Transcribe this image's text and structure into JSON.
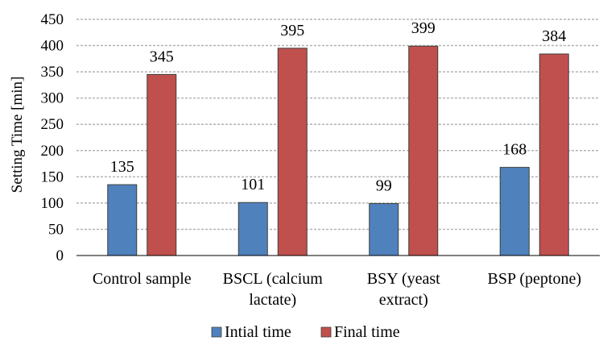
{
  "chart_data": {
    "type": "bar",
    "categories": [
      [
        "Control sample"
      ],
      [
        "BSCL (calcium",
        "lactate)"
      ],
      [
        "BSY (yeast",
        "extract)"
      ],
      [
        "BSP (peptone)"
      ]
    ],
    "series": [
      {
        "name": "Intial time",
        "values": [
          135,
          101,
          99,
          168
        ],
        "color": "#4F81BD"
      },
      {
        "name": "Final time",
        "values": [
          345,
          395,
          399,
          384
        ],
        "color": "#C0504D"
      }
    ],
    "ylabel": "Setting Time [min]",
    "ylim": [
      0,
      450
    ],
    "yticks": [
      0,
      50,
      100,
      150,
      200,
      250,
      300,
      350,
      400,
      450
    ],
    "grid": true,
    "legend": "bottom",
    "data_labels": true
  }
}
